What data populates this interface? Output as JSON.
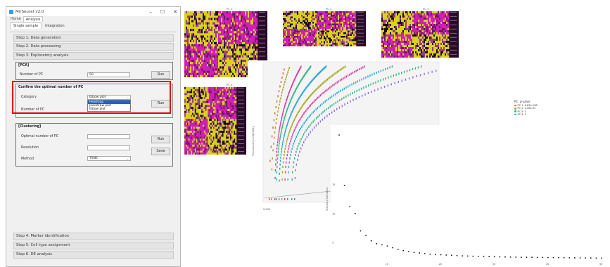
{
  "window": {
    "title": "MirSeurat v2.0",
    "min_glyph": "–",
    "max_glyph": "☐",
    "close_glyph": "✕"
  },
  "menu_tabs": [
    "Home",
    "Analysis"
  ],
  "sub_tabs": [
    "Single sample",
    "Integration"
  ],
  "steps": {
    "s1": "Step 1. Data generation",
    "s2": "Step 2. Data processing",
    "s3": "Step 3. Exploratory analysis",
    "s4": "Step 4. Marker identification",
    "s5": "Step 5. Cell type assignment",
    "s6": "Step 6. DE analysis"
  },
  "pca": {
    "header": "[PCA]",
    "label": "Number of PC",
    "value": "50",
    "run": "Run"
  },
  "confirm": {
    "header": "Confirm the optimal number of PC",
    "category_label": "Category",
    "category_value": "Elbow plot",
    "options": [
      "Heatmap",
      "Jackstraw plot",
      "Elbow plot"
    ],
    "number_label": "Number of PC",
    "run": "Run"
  },
  "clustering": {
    "header": "[Clustering]",
    "optimal_label": "Optimal number of PC",
    "resolution_label": "Resolution",
    "method_label": "Method",
    "method_value": "TSNE",
    "run": "Run",
    "save": "Save"
  },
  "heatmaps": {
    "titles": [
      "PC_1",
      "PC_2",
      "PC_3",
      "PC_4"
    ]
  },
  "jackstraw": {
    "ylabel": "Theoretical [runif(1000)]",
    "x_tick": "0.000",
    "legend_title": "PC: p-value",
    "legend": [
      {
        "label": "PC 1: 6.63e-158",
        "color": "#e0603a"
      },
      {
        "label": "PC 2: 2.06e-33",
        "color": "#a3a21a"
      },
      {
        "label": "PC 3: 1",
        "color": "#2fb37a"
      },
      {
        "label": "PC 4: 1",
        "color": "#29a5d6"
      }
    ]
  },
  "elbow": {
    "ylabel": "Standard Deviation",
    "y_ticks": [
      "15",
      "10",
      "5"
    ],
    "x_ticks": [
      "10",
      "20",
      "30",
      "40",
      "50"
    ],
    "values": [
      23.5,
      14.8,
      11.2,
      10.0,
      7.0,
      6.2,
      5.3,
      4.8,
      4.6,
      4.4,
      4.1,
      3.8,
      3.6,
      3.45,
      3.3,
      3.2,
      3.1,
      3.0,
      2.95,
      2.9,
      2.85,
      2.8,
      2.75,
      2.7,
      2.68,
      2.65,
      2.62,
      2.6,
      2.58,
      2.56,
      2.54,
      2.52,
      2.5,
      2.48,
      2.47,
      2.46,
      2.45,
      2.44,
      2.43,
      2.42,
      2.41,
      2.4,
      2.39,
      2.38,
      2.37,
      2.36,
      2.35,
      2.34,
      2.33,
      2.32
    ]
  }
}
